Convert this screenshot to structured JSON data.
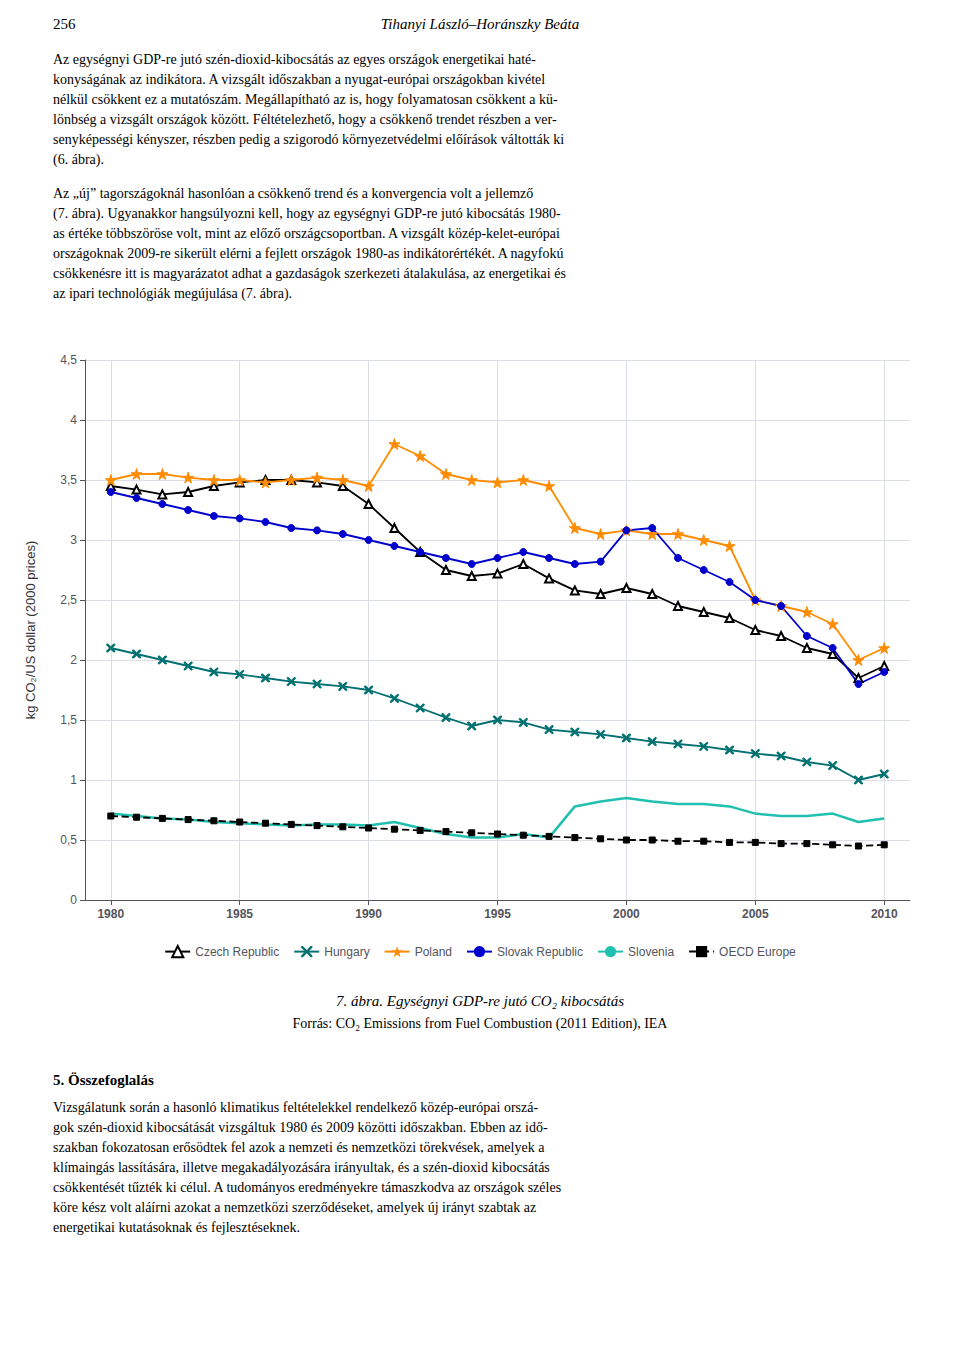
{
  "header": [
    "256",
    "Tihanyi László–Horánszky Beáta"
  ],
  "paragraphs_above": [
    [
      "Az egységnyi GDP-re jutó szén-dioxid-kibocsátás az egyes országok energetikai haté-",
      "konyságának az indikátora. A vizsgált időszakban a nyugat-európai országokban kivétel",
      "nélkül csökkent ez a mutatószám. Megállapítható az is, hogy folyamatosan csökkent a kü-",
      "lönbség a vizsgált országok között. Féltételezhető, hogy a csökkenő trendet részben a ver-",
      "senyképességi kényszer, részben pedig a szigorodó környezetvédelmi előírások váltották ki",
      "(6. ábra)."
    ],
    [
      "Az „új” tagországoknál hasonlóan a csökkenő trend és a konvergencia volt a jellemző",
      "(7. ábra). Ugyanakkor hangsúlyozni kell, hogy az egységnyi GDP-re jutó kibocsátás 1980-",
      "as értéke többszöröse volt, mint az előző országcsoportban. A vizsgált közép-kelet-európai",
      "országoknak 2009-re sikerült elérni a fejlett országok 1980-as indikátorértékét. A nagyfokú",
      "csökkenésre itt is magyarázatot adhat a gazdaságok szerkezeti átalakulása, az energetikai és",
      "az ipari technológiák megújulása (7. ábra)."
    ]
  ],
  "chart_data": {
    "type": "line",
    "title": "7. ábra. Egységnyi GDP-re jutó CO₂ kibocsátás",
    "subtitle": "Forrás: CO₂ Emissions from Fuel Combustion (2011 Edition), IEA",
    "ylabel": "kg CO₂/US dollar (2000 prices)",
    "x": [
      1980,
      1981,
      1982,
      1983,
      1984,
      1985,
      1986,
      1987,
      1988,
      1989,
      1990,
      1991,
      1992,
      1993,
      1994,
      1995,
      1996,
      1997,
      1998,
      1999,
      2000,
      2001,
      2002,
      2003,
      2004,
      2005,
      2006,
      2007,
      2008,
      2009,
      2010
    ],
    "series": [
      {
        "name": "Czech Republic",
        "color": "#000000",
        "marker": "open_triangle",
        "line_style": "solid",
        "values": [
          3.45,
          3.42,
          3.38,
          3.4,
          3.45,
          3.48,
          3.5,
          3.5,
          3.48,
          3.45,
          3.3,
          3.1,
          2.9,
          2.75,
          2.7,
          2.72,
          2.8,
          2.68,
          2.58,
          2.55,
          2.6,
          2.55,
          2.45,
          2.4,
          2.35,
          2.25,
          2.2,
          2.1,
          2.05,
          1.85,
          1.95
        ]
      },
      {
        "name": "Hungary",
        "color": "#007070",
        "marker": "x",
        "line_style": "solid",
        "values": [
          2.1,
          2.05,
          2.0,
          1.95,
          1.9,
          1.88,
          1.85,
          1.82,
          1.8,
          1.78,
          1.75,
          1.68,
          1.6,
          1.52,
          1.45,
          1.5,
          1.48,
          1.42,
          1.4,
          1.38,
          1.35,
          1.32,
          1.3,
          1.28,
          1.25,
          1.22,
          1.2,
          1.15,
          1.12,
          1.0,
          1.05
        ]
      },
      {
        "name": "Poland",
        "color": "#FF8C00",
        "marker": "star",
        "line_style": "solid",
        "values": [
          3.5,
          3.55,
          3.55,
          3.52,
          3.5,
          3.5,
          3.48,
          3.5,
          3.52,
          3.5,
          3.45,
          3.8,
          3.7,
          3.55,
          3.5,
          3.48,
          3.5,
          3.45,
          3.1,
          3.05,
          3.08,
          3.05,
          3.05,
          3.0,
          2.95,
          2.5,
          2.45,
          2.4,
          2.3,
          2.0,
          2.1
        ]
      },
      {
        "name": "Slovak Republic",
        "color": "#0000CC",
        "marker": "circle",
        "line_style": "solid",
        "values": [
          3.4,
          3.35,
          3.3,
          3.25,
          3.2,
          3.18,
          3.15,
          3.1,
          3.08,
          3.05,
          3.0,
          2.95,
          2.9,
          2.85,
          2.8,
          2.85,
          2.9,
          2.85,
          2.8,
          2.82,
          3.08,
          3.1,
          2.85,
          2.75,
          2.65,
          2.5,
          2.45,
          2.2,
          2.1,
          1.8,
          1.9
        ]
      },
      {
        "name": "Slovenia",
        "color": "#20C0B0",
        "marker": "none",
        "line_style": "solid",
        "values": [
          0.72,
          0.7,
          0.68,
          0.67,
          0.65,
          0.64,
          0.63,
          0.62,
          0.63,
          0.63,
          0.62,
          0.65,
          0.6,
          0.55,
          0.52,
          0.52,
          0.55,
          0.52,
          0.78,
          0.82,
          0.85,
          0.82,
          0.8,
          0.8,
          0.78,
          0.72,
          0.7,
          0.7,
          0.72,
          0.65,
          0.68
        ]
      },
      {
        "name": "OECD Europe",
        "color": "#000000",
        "marker": "square",
        "line_style": "dashed",
        "values": [
          0.7,
          0.69,
          0.68,
          0.67,
          0.66,
          0.65,
          0.64,
          0.63,
          0.62,
          0.61,
          0.6,
          0.59,
          0.58,
          0.57,
          0.56,
          0.55,
          0.54,
          0.53,
          0.52,
          0.51,
          0.5,
          0.5,
          0.49,
          0.49,
          0.48,
          0.48,
          0.47,
          0.47,
          0.46,
          0.45,
          0.46
        ]
      }
    ],
    "xlim": [
      1979,
      2011
    ],
    "xticks": [
      1980,
      1985,
      1990,
      1995,
      2000,
      2005,
      2010
    ],
    "ylim": [
      0,
      4.5
    ],
    "yticks": [
      0,
      {
        "value": 0.5,
        "label": "0,5"
      },
      1,
      {
        "value": 1.5,
        "label": "1,5"
      },
      2,
      {
        "value": 2.5,
        "label": "2,5"
      },
      3,
      {
        "value": 3.5,
        "label": "3,5"
      },
      4,
      {
        "value": 4.5,
        "label": "4,5"
      }
    ],
    "grid": true,
    "legend": "bottom"
  },
  "section_header": "5. Összefoglalás",
  "paragraphs_below": [
    [
      "Vizsgálatunk során a hasonló klimatikus feltételekkel rendelkező közép-európai orszá-",
      "gok szén-dioxid kibocsátását vizsgáltuk 1980 és 2009 közötti időszakban. Ebben az idő-",
      "szakban fokozatosan erősödtek fel azok a nemzeti és nemzetközi törekvések, amelyek a",
      "klímaingás lassítására, illetve megakadályozására irányultak, és a szén-dioxid kibocsátás",
      "csökkentését tűzték ki célul. A tudományos eredményekre támaszkodva az országok széles",
      "köre kész volt aláírni azokat a nemzetközi szerződéseket, amelyek új irányt szabtak az",
      "energetikai kutatásoknak és fejlesztéseknek."
    ]
  ]
}
